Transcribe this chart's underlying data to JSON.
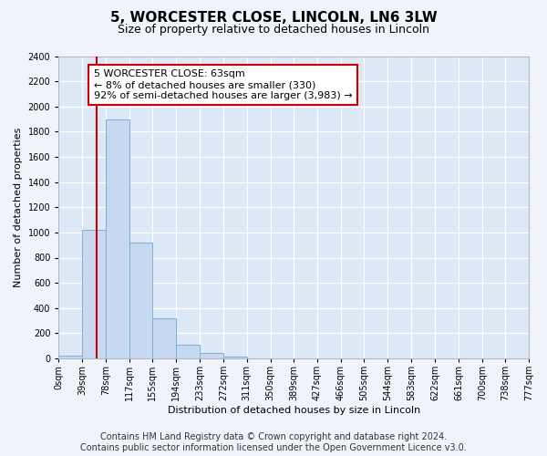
{
  "title": "5, WORCESTER CLOSE, LINCOLN, LN6 3LW",
  "subtitle": "Size of property relative to detached houses in Lincoln",
  "xlabel": "Distribution of detached houses by size in Lincoln",
  "ylabel": "Number of detached properties",
  "bin_edges": [
    0,
    39,
    78,
    117,
    155,
    194,
    233,
    272,
    311,
    350,
    389,
    427,
    466,
    505,
    544,
    583,
    622,
    661,
    700,
    738,
    777
  ],
  "bar_heights": [
    20,
    1020,
    1900,
    920,
    320,
    105,
    45,
    18,
    0,
    0,
    0,
    0,
    0,
    0,
    0,
    0,
    0,
    0,
    0,
    0
  ],
  "bar_color": "#c6d9f0",
  "bar_edge_color": "#7bafd4",
  "property_line_x": 63,
  "property_line_color": "#cc0000",
  "annotation_line1": "5 WORCESTER CLOSE: 63sqm",
  "annotation_line2": "← 8% of detached houses are smaller (330)",
  "annotation_line3": "92% of semi-detached houses are larger (3,983) →",
  "annotation_box_color": "#ffffff",
  "annotation_box_edge": "#cc0000",
  "ylim": [
    0,
    2400
  ],
  "xlim": [
    0,
    777
  ],
  "tick_labels": [
    "0sqm",
    "39sqm",
    "78sqm",
    "117sqm",
    "155sqm",
    "194sqm",
    "233sqm",
    "272sqm",
    "311sqm",
    "350sqm",
    "389sqm",
    "427sqm",
    "466sqm",
    "505sqm",
    "544sqm",
    "583sqm",
    "622sqm",
    "661sqm",
    "700sqm",
    "738sqm",
    "777sqm"
  ],
  "yticks": [
    0,
    200,
    400,
    600,
    800,
    1000,
    1200,
    1400,
    1600,
    1800,
    2000,
    2200,
    2400
  ],
  "footer_line1": "Contains HM Land Registry data © Crown copyright and database right 2024.",
  "footer_line2": "Contains public sector information licensed under the Open Government Licence v3.0.",
  "background_color": "#f0f4fa",
  "plot_background_color": "#dce8f5",
  "grid_color": "#ffffff",
  "title_fontsize": 11,
  "subtitle_fontsize": 9,
  "axis_label_fontsize": 8,
  "tick_fontsize": 7,
  "annotation_fontsize": 8,
  "footer_fontsize": 7
}
